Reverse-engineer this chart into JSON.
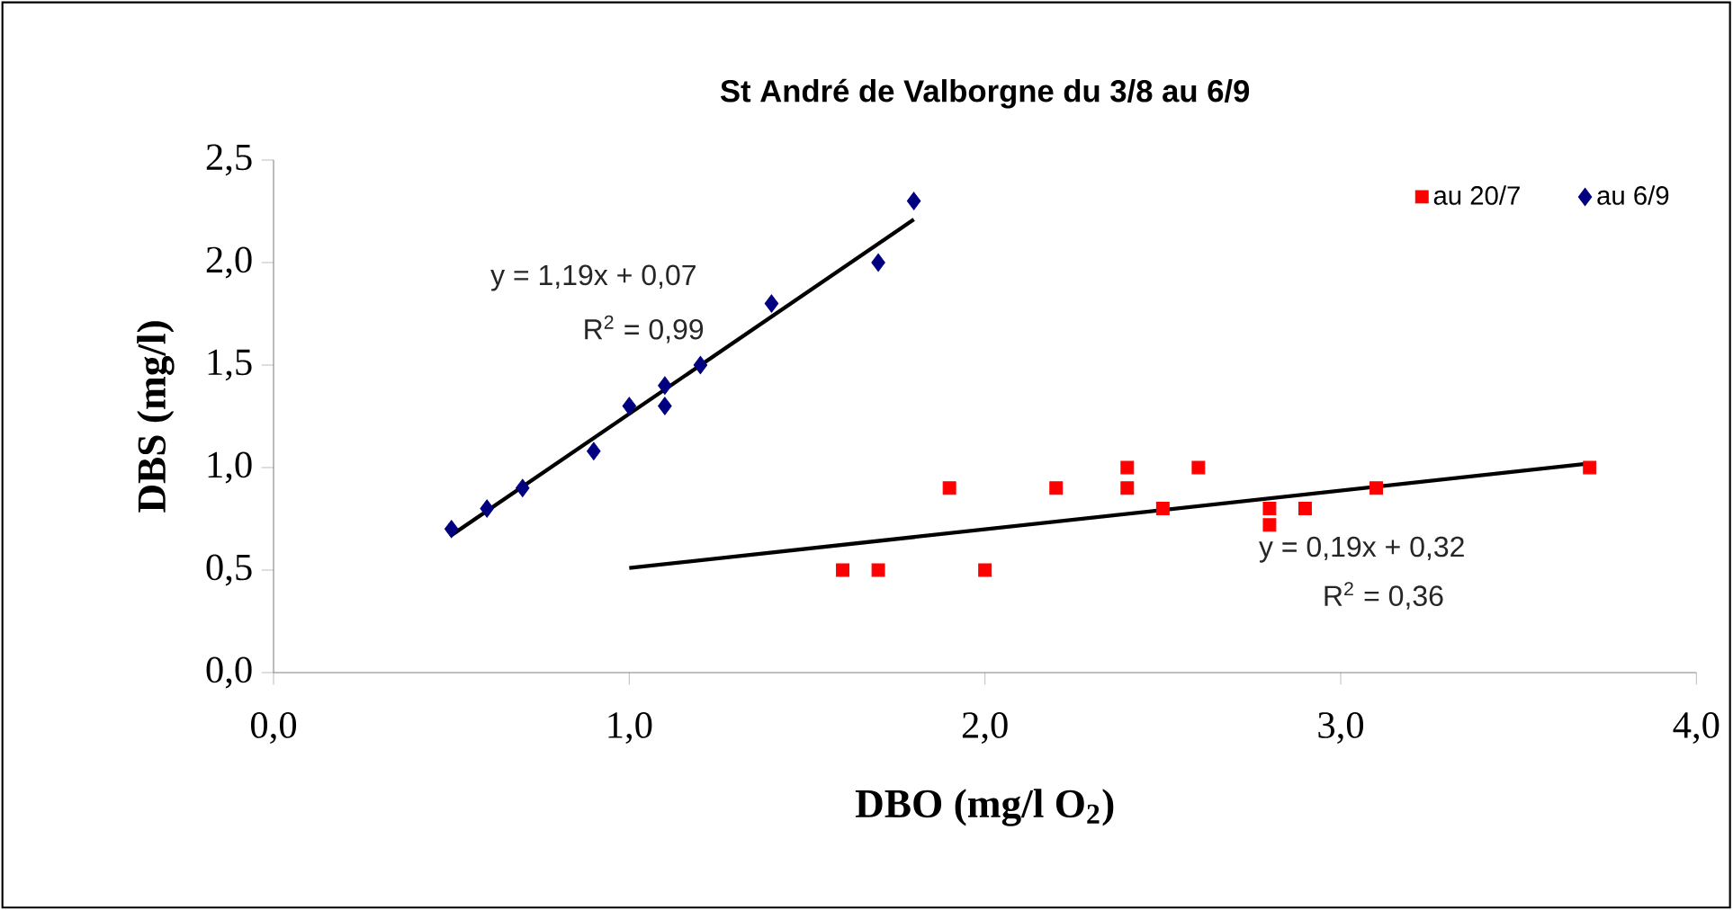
{
  "chart_data": {
    "type": "scatter",
    "title": "St André de Valborgne du 3/8 au 6/9",
    "xlabel": "DBO (mg/l O$_{2}$)",
    "ylabel": "DBS (mg/l)",
    "xlim": [
      0,
      4
    ],
    "ylim": [
      0,
      2.5
    ],
    "xticks": [
      {
        "value": 0,
        "label": "0,0"
      },
      {
        "value": 1,
        "label": "1,0"
      },
      {
        "value": 2,
        "label": "2,0"
      },
      {
        "value": 3,
        "label": "3,0"
      },
      {
        "value": 4,
        "label": "4,0"
      }
    ],
    "yticks": [
      {
        "value": 0,
        "label": "0,0"
      },
      {
        "value": 0.5,
        "label": "0,5"
      },
      {
        "value": 1,
        "label": "1,0"
      },
      {
        "value": 1.5,
        "label": "1,5"
      },
      {
        "value": 2,
        "label": "2,0"
      },
      {
        "value": 2.5,
        "label": "2,5"
      }
    ],
    "grid": false,
    "legend": "top right",
    "series": [
      {
        "name": "au 20/7",
        "color": "#ff0000",
        "marker": "square",
        "x": [
          1.6,
          1.7,
          1.9,
          2.0,
          2.2,
          2.4,
          2.4,
          2.5,
          2.6,
          2.8,
          2.8,
          2.9,
          3.1,
          3.7
        ],
        "values": [
          0.5,
          0.5,
          0.9,
          0.5,
          0.9,
          1.0,
          0.9,
          0.8,
          1.0,
          0.8,
          0.72,
          0.8,
          0.9,
          1.0
        ]
      },
      {
        "name": "au 6/9",
        "color": "#000080",
        "marker": "diamond",
        "x": [
          0.5,
          0.6,
          0.7,
          0.9,
          1.0,
          1.1,
          1.1,
          1.2,
          1.4,
          1.7,
          1.8
        ],
        "values": [
          0.7,
          0.8,
          0.9,
          1.08,
          1.3,
          1.4,
          1.3,
          1.5,
          1.8,
          2.0,
          2.3
        ]
      },
      {
        "type": "line",
        "color": "#000000",
        "marker": "none",
        "x": [
          1.0,
          3.7
        ],
        "values": [
          0.51,
          1.02
        ]
      },
      {
        "type": "line",
        "color": "#000000",
        "marker": "none",
        "x": [
          0.5,
          1.8
        ],
        "values": [
          0.67,
          2.21
        ]
      }
    ],
    "annotations": [
      "y = 1,19x + 0,07",
      "R$^{2}$ = 0,99",
      "y = 0,19x + 0,32",
      "R$^{2}$ = 0,36"
    ]
  }
}
